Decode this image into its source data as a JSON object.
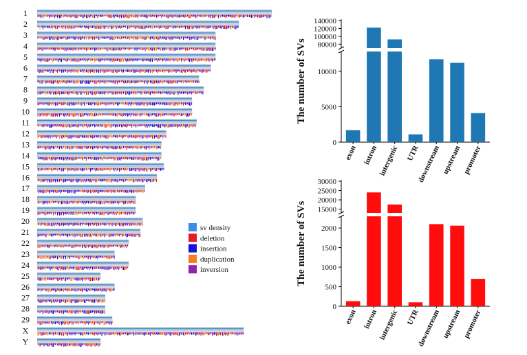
{
  "chart_data": [
    {
      "type": "ideogram",
      "chromosomes": [
        {
          "name": "1",
          "relative_length": 1.0
        },
        {
          "name": "2",
          "relative_length": 0.86
        },
        {
          "name": "3",
          "relative_length": 0.76
        },
        {
          "name": "4",
          "relative_length": 0.76
        },
        {
          "name": "5",
          "relative_length": 0.76
        },
        {
          "name": "6",
          "relative_length": 0.74
        },
        {
          "name": "7",
          "relative_length": 0.69
        },
        {
          "name": "8",
          "relative_length": 0.71
        },
        {
          "name": "9",
          "relative_length": 0.66
        },
        {
          "name": "10",
          "relative_length": 0.66
        },
        {
          "name": "11",
          "relative_length": 0.68
        },
        {
          "name": "12",
          "relative_length": 0.55
        },
        {
          "name": "13",
          "relative_length": 0.53
        },
        {
          "name": "14",
          "relative_length": 0.53
        },
        {
          "name": "15",
          "relative_length": 0.54
        },
        {
          "name": "16",
          "relative_length": 0.51
        },
        {
          "name": "17",
          "relative_length": 0.46
        },
        {
          "name": "18",
          "relative_length": 0.42
        },
        {
          "name": "19",
          "relative_length": 0.42
        },
        {
          "name": "20",
          "relative_length": 0.45
        },
        {
          "name": "21",
          "relative_length": 0.44
        },
        {
          "name": "22",
          "relative_length": 0.39
        },
        {
          "name": "23",
          "relative_length": 0.33
        },
        {
          "name": "24",
          "relative_length": 0.39
        },
        {
          "name": "25",
          "relative_length": 0.27
        },
        {
          "name": "26",
          "relative_length": 0.33
        },
        {
          "name": "27",
          "relative_length": 0.29
        },
        {
          "name": "28",
          "relative_length": 0.29
        },
        {
          "name": "29",
          "relative_length": 0.32
        },
        {
          "name": "X",
          "relative_length": 0.88
        },
        {
          "name": "Y",
          "relative_length": 0.27
        }
      ],
      "legend": [
        {
          "label": "sv density",
          "color": "#3a8ee6"
        },
        {
          "label": "deletion",
          "color": "#e51c23"
        },
        {
          "label": "insertion",
          "color": "#1414d6"
        },
        {
          "label": "duplication",
          "color": "#f57c1f"
        },
        {
          "label": "inversion",
          "color": "#8e24aa"
        }
      ],
      "legend_position": "lower-right"
    },
    {
      "type": "bar",
      "broken_axis": true,
      "color": "#1f77b4",
      "ylabel": "The number of SVs",
      "categories": [
        "exon",
        "intron",
        "intergenic",
        "UTR",
        "downstream",
        "upstream",
        "promoter"
      ],
      "values": [
        1700,
        122000,
        92000,
        1100,
        11700,
        11200,
        4100
      ],
      "lower_ylim": [
        0,
        12800
      ],
      "lower_ticks": [
        "0",
        "5000",
        "10000"
      ],
      "upper_ylim": [
        70000,
        140000
      ],
      "upper_ticks": [
        "80000",
        "100000",
        "120000",
        "140000"
      ]
    },
    {
      "type": "bar",
      "broken_axis": true,
      "color": "#ff0d0d",
      "ylabel": "The number of SVs",
      "categories": [
        "exon",
        "intron",
        "intergenic",
        "UTR",
        "downstream",
        "upstream",
        "promoter"
      ],
      "values": [
        130,
        24000,
        17500,
        100,
        2100,
        2060,
        700
      ],
      "lower_ylim": [
        0,
        2300
      ],
      "lower_ticks": [
        "0",
        "500",
        "1000",
        "1500",
        "2000"
      ],
      "upper_ylim": [
        13000,
        30000
      ],
      "upper_ticks": [
        "15000",
        "20000",
        "25000",
        "30000"
      ]
    }
  ]
}
